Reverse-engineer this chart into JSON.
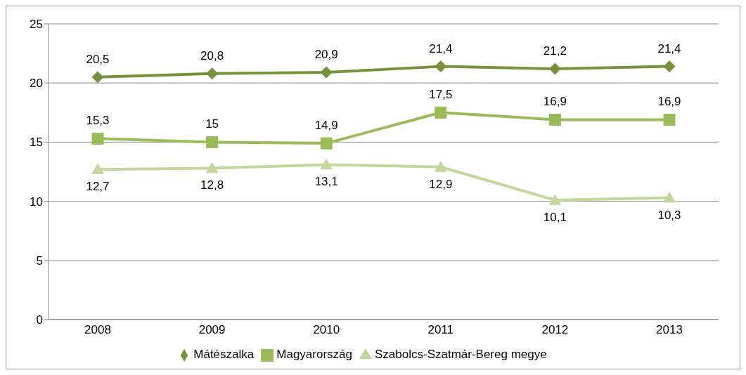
{
  "chart_data": {
    "type": "line",
    "categories": [
      "2008",
      "2009",
      "2010",
      "2011",
      "2012",
      "2013"
    ],
    "series": [
      {
        "name": "Mátészalka",
        "color": "#76933c",
        "marker": "diamond",
        "values": [
          20.5,
          20.8,
          20.9,
          21.4,
          21.2,
          21.4
        ],
        "value_labels": [
          "20,5",
          "20,8",
          "20,9",
          "21,4",
          "21,2",
          "21,4"
        ]
      },
      {
        "name": "Magyarország",
        "color": "#9bbb59",
        "marker": "square",
        "values": [
          15.3,
          15,
          14.9,
          17.5,
          16.9,
          16.9
        ],
        "value_labels": [
          "15,3",
          "15",
          "14,9",
          "17,5",
          "16,9",
          "16,9"
        ]
      },
      {
        "name": "Szabolcs-Szatmár-Bereg megye",
        "color": "#c3d69b",
        "marker": "triangle",
        "values": [
          12.7,
          12.8,
          13.1,
          12.9,
          10.1,
          10.3
        ],
        "value_labels": [
          "12,7",
          "12,8",
          "13,1",
          "12,9",
          "10,1",
          "10,3"
        ]
      }
    ],
    "ylim": [
      0,
      25
    ],
    "yticks": [
      0,
      5,
      10,
      15,
      20,
      25
    ],
    "grid": "y",
    "legend": "bottom",
    "line_style": "solid"
  }
}
